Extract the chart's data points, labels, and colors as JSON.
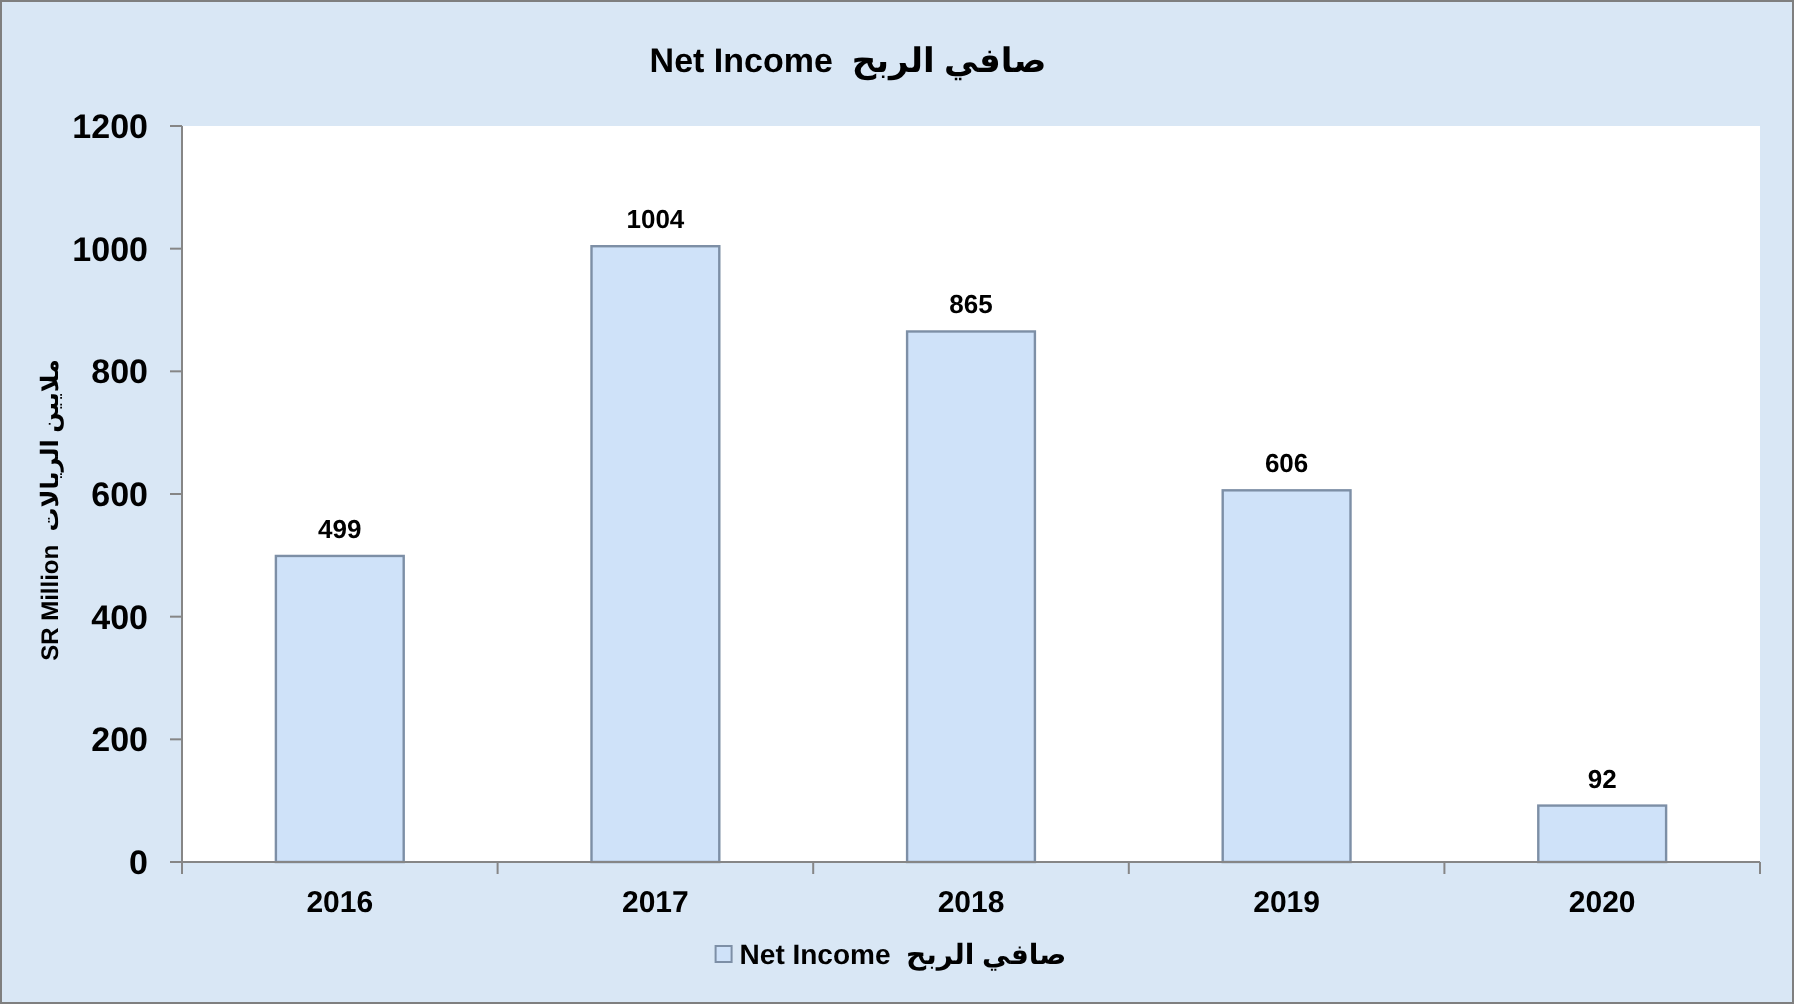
{
  "chart_data": {
    "type": "bar",
    "title": "Net Income  صافي الربح",
    "ylabel": "SR Million  ملايين الريالات",
    "categories": [
      "2016",
      "2017",
      "2018",
      "2019",
      "2020"
    ],
    "series": [
      {
        "name": "Net Income  صافي الربح",
        "color": "#cfe2f9",
        "values": [
          499,
          1004,
          865,
          606,
          92
        ]
      }
    ],
    "ylim": [
      0,
      1200
    ],
    "yticks": [
      0,
      200,
      400,
      600,
      800,
      1000,
      1200
    ],
    "data_labels": true,
    "legend": "bottom"
  }
}
